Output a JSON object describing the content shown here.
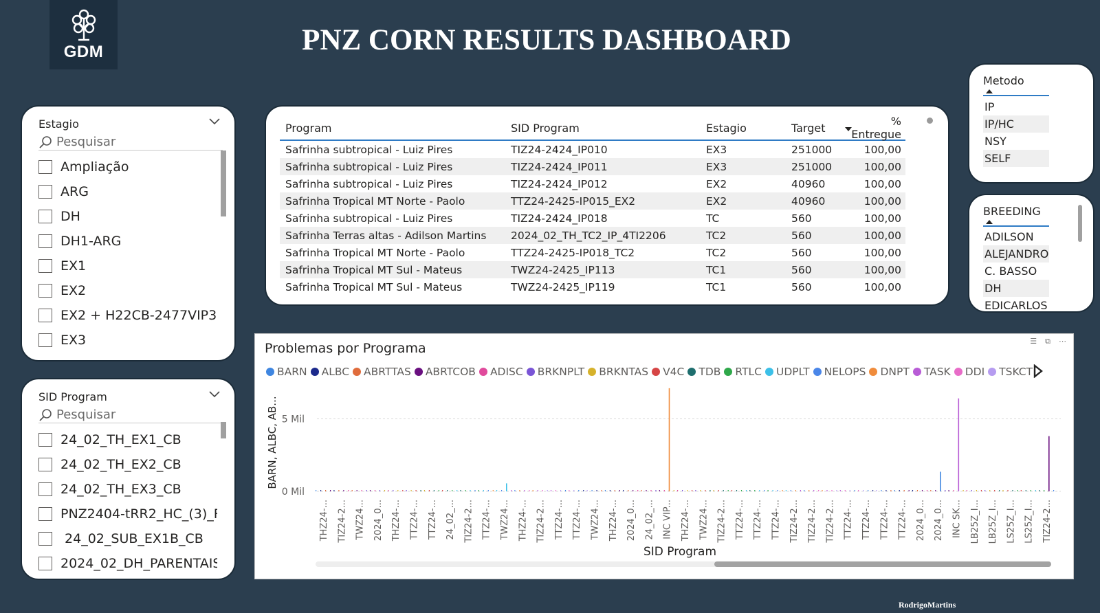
{
  "header": {
    "logo_text": "GDM",
    "title": "PNZ CORN RESULTS DASHBOARD",
    "credit": "RodrigoMartins"
  },
  "slicer_estagio": {
    "title": "Estagio",
    "search_placeholder": "Pesquisar",
    "items": [
      "Ampliação",
      "ARG",
      "DH",
      "DH1-ARG",
      "EX1",
      "EX2",
      "EX2 + H22CB-2477VIP3",
      "EX3"
    ]
  },
  "slicer_sid": {
    "title": "SID Program",
    "search_placeholder": "Pesquisar",
    "items": [
      "24_02_TH_EX1_CB",
      "24_02_TH_EX2_CB",
      "24_02_TH_EX3_CB",
      "PNZ2404-tRR2_HC_(3)_Re...",
      " 24_02_SUB_EX1B_CB",
      "2024_02_DH_PARENTAIS_..."
    ]
  },
  "table": {
    "headers": [
      "Program",
      "SID Program",
      "Estagio",
      "Target",
      "% Entregue"
    ],
    "rows": [
      [
        "Safrinha subtropical - Luiz Pires",
        "TIZ24-2424_IP010",
        "EX3",
        "251000",
        "100,00"
      ],
      [
        "Safrinha subtropical - Luiz Pires",
        "TIZ24-2424_IP011",
        "EX3",
        "251000",
        "100,00"
      ],
      [
        "Safrinha subtropical - Luiz Pires",
        "TIZ24-2424_IP012",
        "EX2",
        "40960",
        "100,00"
      ],
      [
        "Safrinha Tropical MT Norte - Paolo",
        "TTZ24-2425-IP015_EX2",
        "EX2",
        "40960",
        "100,00"
      ],
      [
        "Safrinha subtropical - Luiz Pires",
        "TIZ24-2424_IP018",
        "TC",
        "560",
        "100,00"
      ],
      [
        "Safrinha Terras altas - Adilson Martins",
        "2024_02_TH_TC2_IP_4TI2206",
        "TC2",
        "560",
        "100,00"
      ],
      [
        "Safrinha Tropical MT Norte - Paolo",
        "TTZ24-2425-IP018_TC2",
        "TC2",
        "560",
        "100,00"
      ],
      [
        "Safrinha Tropical MT Sul - Mateus",
        "TWZ24-2425_IP113",
        "TC1",
        "560",
        "100,00"
      ],
      [
        "Safrinha Tropical MT Sul - Mateus",
        "TWZ24-2425_IP119",
        "TC1",
        "560",
        "100,00"
      ]
    ]
  },
  "slicer_metodo": {
    "title": "Metodo",
    "items": [
      "IP",
      "IP/HC",
      "NSY",
      "SELF"
    ]
  },
  "slicer_breeding": {
    "title": "BREEDING",
    "items": [
      "ADILSON",
      "ALEJANDRO",
      "C. BASSO",
      "DH",
      "EDICARLOS"
    ]
  },
  "chart_data": {
    "type": "bar",
    "title": "Problemas por Programa",
    "xlabel": "SID Program",
    "ylabel": "BARN, ALBC, AB...",
    "yticks": [
      "0 Mil",
      "5 Mil"
    ],
    "ylim": [
      0,
      7000
    ],
    "legend": [
      {
        "name": "BARN",
        "color": "#3f86e0"
      },
      {
        "name": "ALBC",
        "color": "#1c2a8c"
      },
      {
        "name": "ABRTTAS",
        "color": "#e06c3c"
      },
      {
        "name": "ABRTCOB",
        "color": "#6a1080"
      },
      {
        "name": "ADISC",
        "color": "#e04a9c"
      },
      {
        "name": "BRKNPLT",
        "color": "#7a55d6"
      },
      {
        "name": "BRKNTAS",
        "color": "#d6b22c"
      },
      {
        "name": "V4C",
        "color": "#d64545"
      },
      {
        "name": "TDB",
        "color": "#1e6e6e"
      },
      {
        "name": "RTLC",
        "color": "#2fa84a"
      },
      {
        "name": "UDPLT",
        "color": "#3cc0e8"
      },
      {
        "name": "NELOPS",
        "color": "#4a86e8"
      },
      {
        "name": "DNPT",
        "color": "#f08c3c"
      },
      {
        "name": "TASK",
        "color": "#b85cd6"
      },
      {
        "name": "DDI",
        "color": "#e86cc8"
      },
      {
        "name": "TSKCT",
        "color": "#b69cf0"
      }
    ],
    "categories": [
      "THZ24-...",
      "TIZ24-2...",
      "TWZ24...",
      "2024_0...",
      "THZ24-...",
      "TTZ24-...",
      "TTZ24-...",
      "24_02_...",
      "TIZ24-2...",
      "TTZ24-...",
      "TWZ24...",
      "THZ24-...",
      "TIZ24-2...",
      "TTZ24-...",
      "TTZ24-...",
      "TWZ24...",
      "THZ24-...",
      "2024_0...",
      "24_02_...",
      "INC VIP...",
      "THZ24-...",
      "TWZ24...",
      "TIZ24-2...",
      "TTZ24-...",
      "TTZ24-...",
      "TTZ24-...",
      "TIZ24-2...",
      "TIZ24-2...",
      "TIZ24-2...",
      "TTZ24-...",
      "TTZ24-...",
      "TTZ24-...",
      "TTZ24-...",
      "2024_0...",
      "2024_0...",
      "INC SK...",
      "LB25Z_I...",
      "LB25Z_I...",
      "LS25Z_I...",
      "LS25Z_I...",
      "TIZ24-2..."
    ],
    "spikes": [
      {
        "category_index": 19,
        "series": "DNPT",
        "value": 7100
      },
      {
        "category_index": 35,
        "series": "TASK",
        "value": 6400
      },
      {
        "category_index": 34,
        "series": "BARN",
        "value": 1350
      },
      {
        "category_index": 40,
        "series": "ABRTCOB",
        "value": 3800
      },
      {
        "category_index": 10,
        "series": "UDPLT",
        "value": 550
      }
    ]
  }
}
